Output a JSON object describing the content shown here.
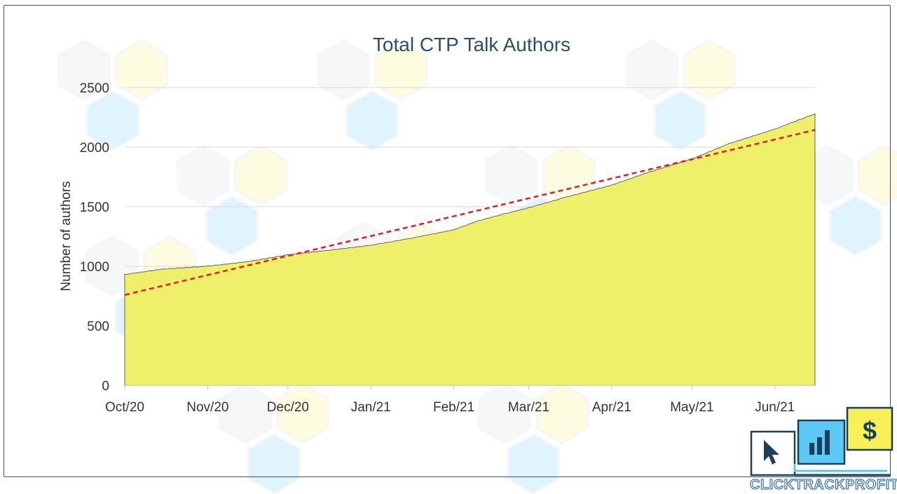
{
  "brand": {
    "name": "CLICKTRACKPROFIT",
    "colors": {
      "navy": "#1e3f5a",
      "blue": "#5bc8f5",
      "yellow": "#f7f157"
    }
  },
  "chart_data": {
    "type": "area",
    "title": "Total CTP Talk Authors",
    "xlabel": "",
    "ylabel": "Number of authors",
    "x_tick_labels": [
      "Oct/20",
      "Nov/20",
      "Dec/20",
      "Jan/21",
      "Feb/21",
      "Mar/21",
      "Apr/21",
      "May/21",
      "Jun/21"
    ],
    "x_range": [
      "2020-10-01",
      "2021-06-16"
    ],
    "ylim": [
      0,
      2500
    ],
    "y_ticks": [
      0,
      500,
      1000,
      1500,
      2000,
      2500
    ],
    "grid": "horizontal",
    "legend": "none",
    "fill_color": "#eef06a",
    "series": [
      {
        "type": "area",
        "x": [
          "2020-10-01",
          "2020-10-15",
          "2020-11-01",
          "2020-11-15",
          "2020-12-01",
          "2020-12-15",
          "2021-01-01",
          "2021-01-15",
          "2021-02-01",
          "2021-02-10",
          "2021-02-20",
          "2021-03-01",
          "2021-03-15",
          "2021-04-01",
          "2021-04-15",
          "2021-05-01",
          "2021-05-15",
          "2021-06-01",
          "2021-06-16"
        ],
        "values": [
          930,
          975,
          1000,
          1035,
          1095,
          1130,
          1175,
          1230,
          1305,
          1380,
          1440,
          1490,
          1580,
          1680,
          1790,
          1900,
          2030,
          2150,
          2280
        ]
      },
      {
        "type": "trendline",
        "style": "dashed",
        "color": "#e31e1e",
        "x": [
          "2020-10-01",
          "2021-06-16"
        ],
        "values": [
          760,
          2145
        ]
      }
    ]
  }
}
